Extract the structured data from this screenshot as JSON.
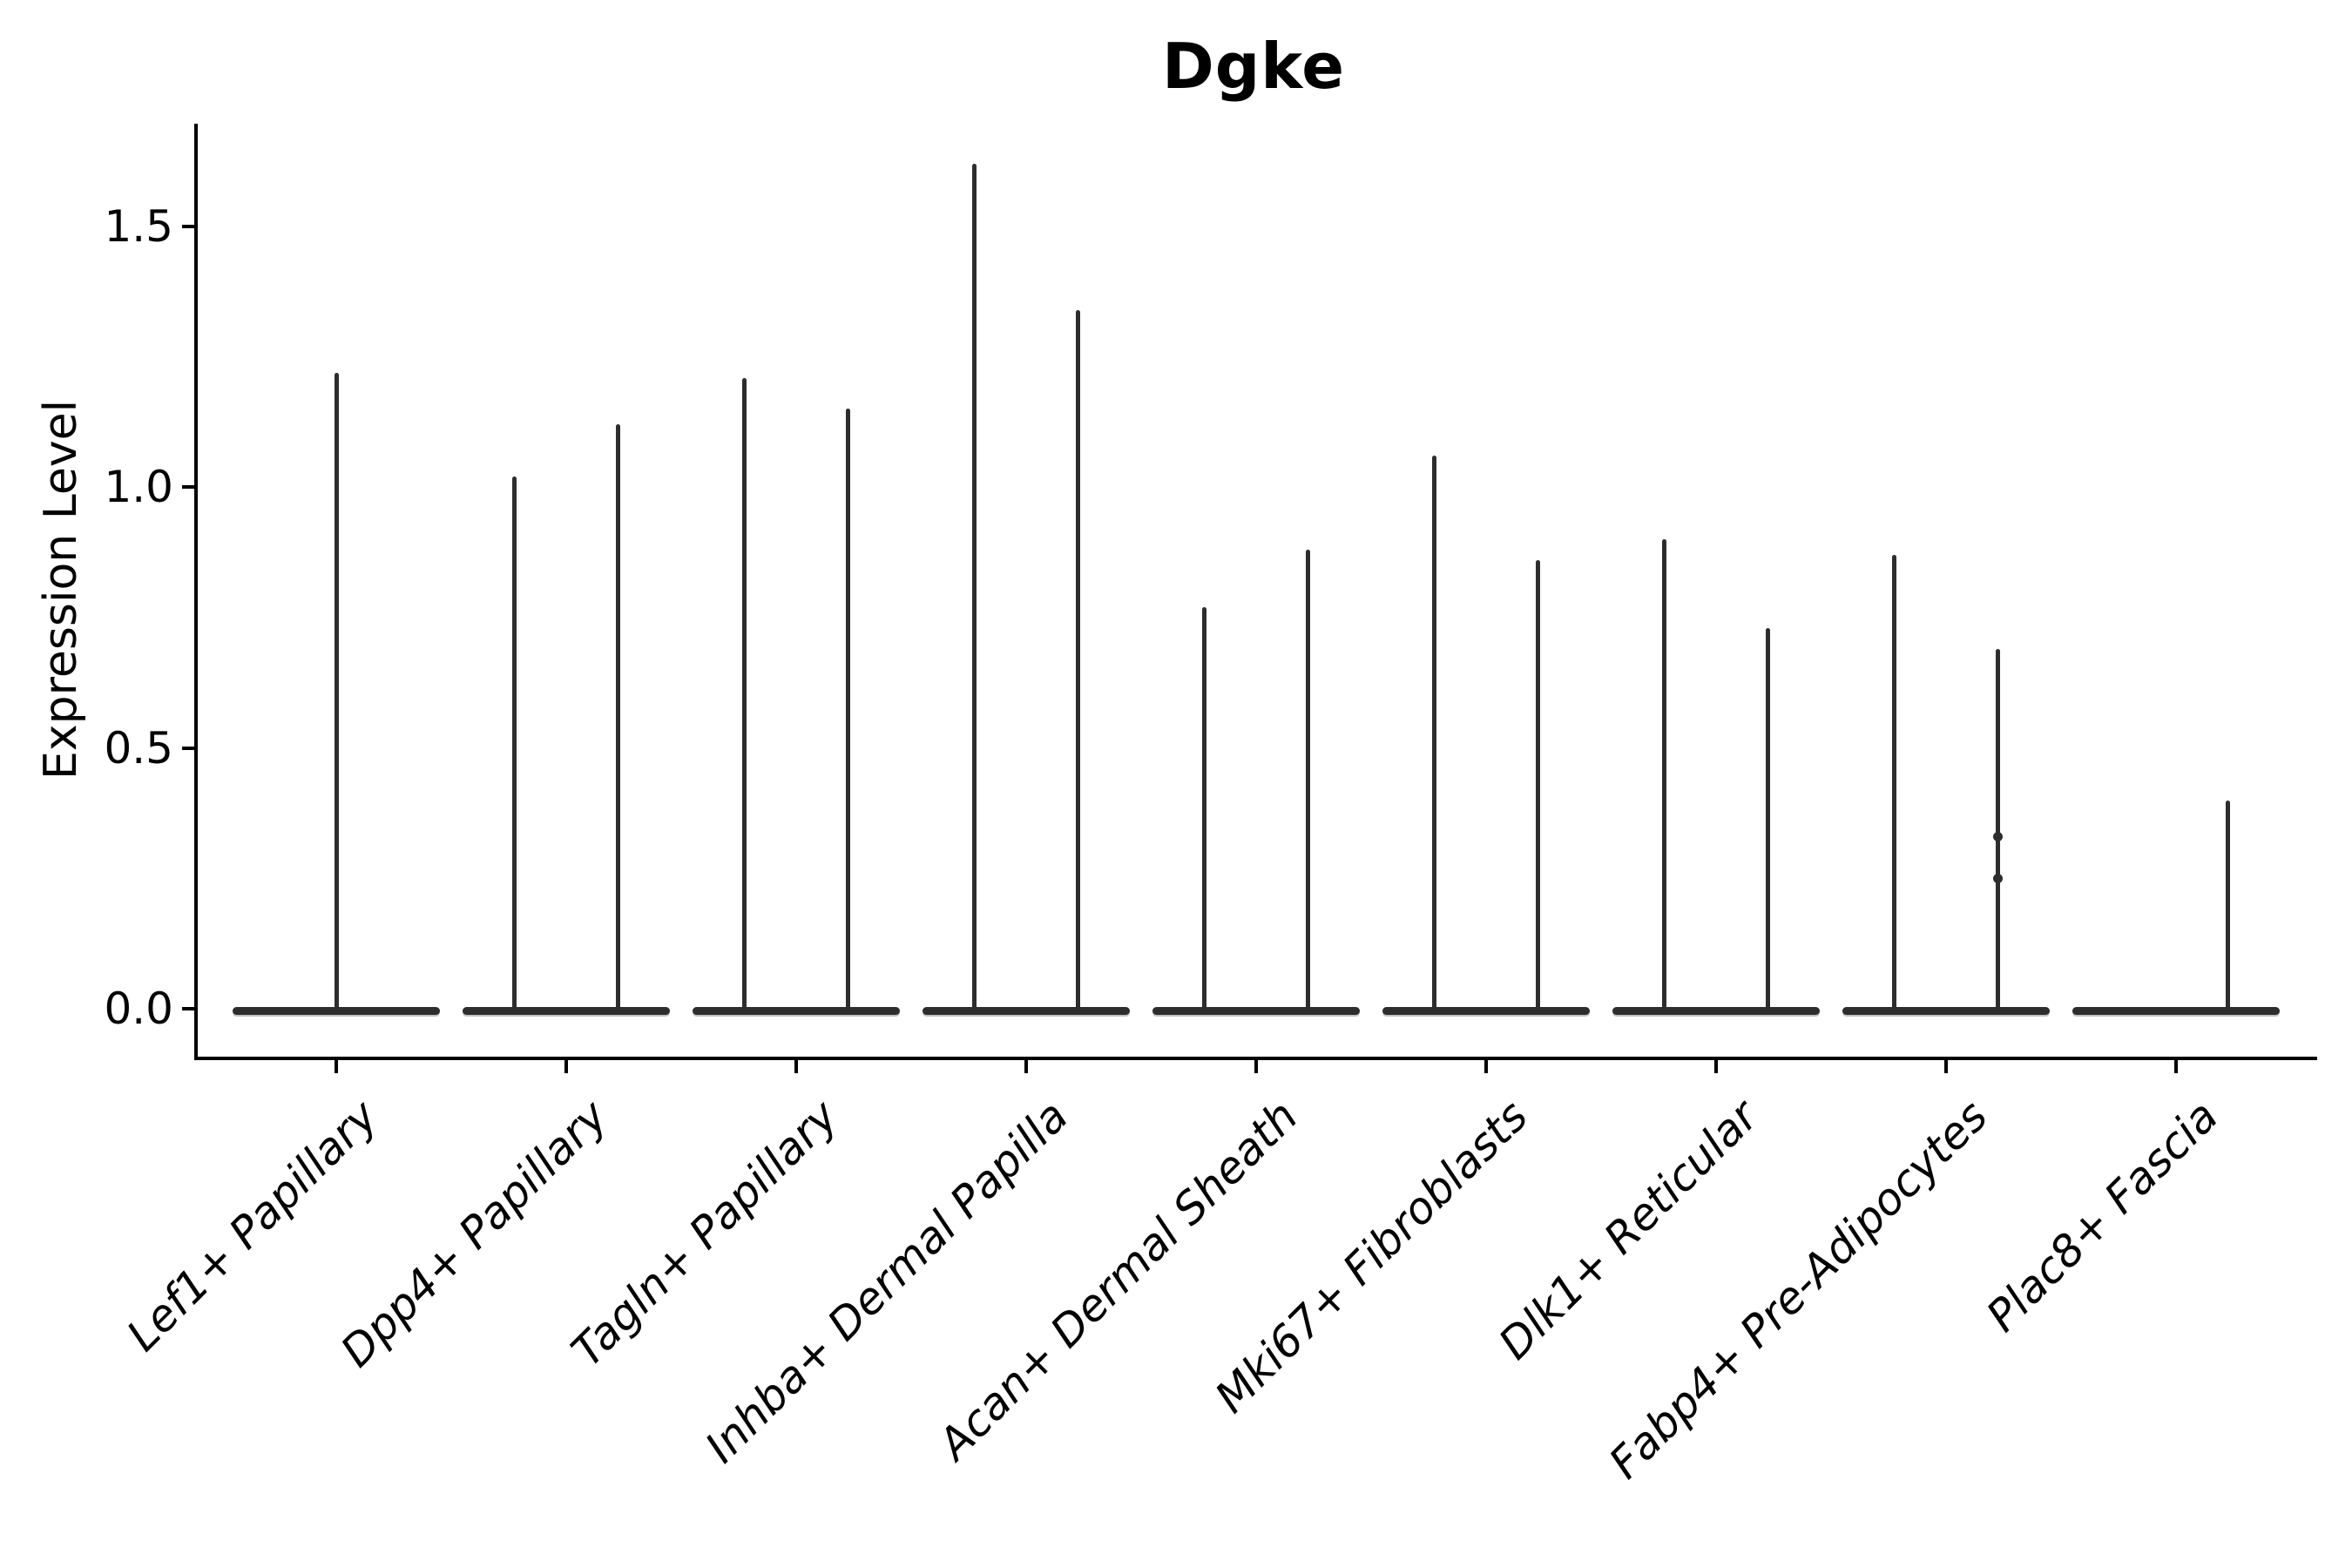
{
  "chart_data": {
    "type": "violin",
    "title": "Dgke",
    "xlabel": "",
    "ylabel": "Expression Level",
    "ylim": [
      -0.09,
      1.7
    ],
    "yticks": [
      0.0,
      0.5,
      1.0,
      1.5
    ],
    "ytick_labels": [
      "0.0",
      "0.5",
      "1.0",
      "1.5"
    ],
    "grid": false,
    "legend": "none",
    "baseline_value": 0.0,
    "categories": [
      "Lef1+ Papillary",
      "Dpp4+ Papillary",
      "Tagln+ Papillary",
      "Inhba+ Dermal Papilla",
      "Acan+ Dermal Sheath",
      "Mki67+ Fibroblasts",
      "Dlk1+ Reticular",
      "Fabp4+ Pre-Adipocytes",
      "Plac8+ Fascia"
    ],
    "violins": [
      {
        "category": "Lef1+ Papillary",
        "spikes": [
          {
            "pos": "center",
            "max": 1.22
          }
        ]
      },
      {
        "category": "Dpp4+ Papillary",
        "spikes": [
          {
            "pos": "left",
            "max": 1.02
          },
          {
            "pos": "right",
            "max": 1.12
          }
        ]
      },
      {
        "category": "Tagln+ Papillary",
        "spikes": [
          {
            "pos": "left",
            "max": 1.21
          },
          {
            "pos": "right",
            "max": 1.15
          }
        ]
      },
      {
        "category": "Inhba+ Dermal Papilla",
        "spikes": [
          {
            "pos": "left",
            "max": 1.62
          },
          {
            "pos": "right",
            "max": 1.34
          }
        ]
      },
      {
        "category": "Acan+ Dermal Sheath",
        "spikes": [
          {
            "pos": "left",
            "max": 0.77
          },
          {
            "pos": "right",
            "max": 0.88
          }
        ]
      },
      {
        "category": "Mki67+ Fibroblasts",
        "spikes": [
          {
            "pos": "left",
            "max": 1.06
          },
          {
            "pos": "right",
            "max": 0.86
          }
        ]
      },
      {
        "category": "Dlk1+ Reticular",
        "spikes": [
          {
            "pos": "left",
            "max": 0.9
          },
          {
            "pos": "right",
            "max": 0.73
          }
        ]
      },
      {
        "category": "Fabp4+ Pre-Adipocytes",
        "spikes": [
          {
            "pos": "left",
            "max": 0.87
          },
          {
            "pos": "right",
            "max": 0.69,
            "bumps": [
              0.33,
              0.25
            ]
          }
        ]
      },
      {
        "category": "Plac8+ Fascia",
        "spikes": [
          {
            "pos": "right",
            "max": 0.4
          }
        ]
      }
    ],
    "colors": {
      "violin": "#2d2d2d",
      "axis": "#000000",
      "background": "#ffffff"
    }
  }
}
